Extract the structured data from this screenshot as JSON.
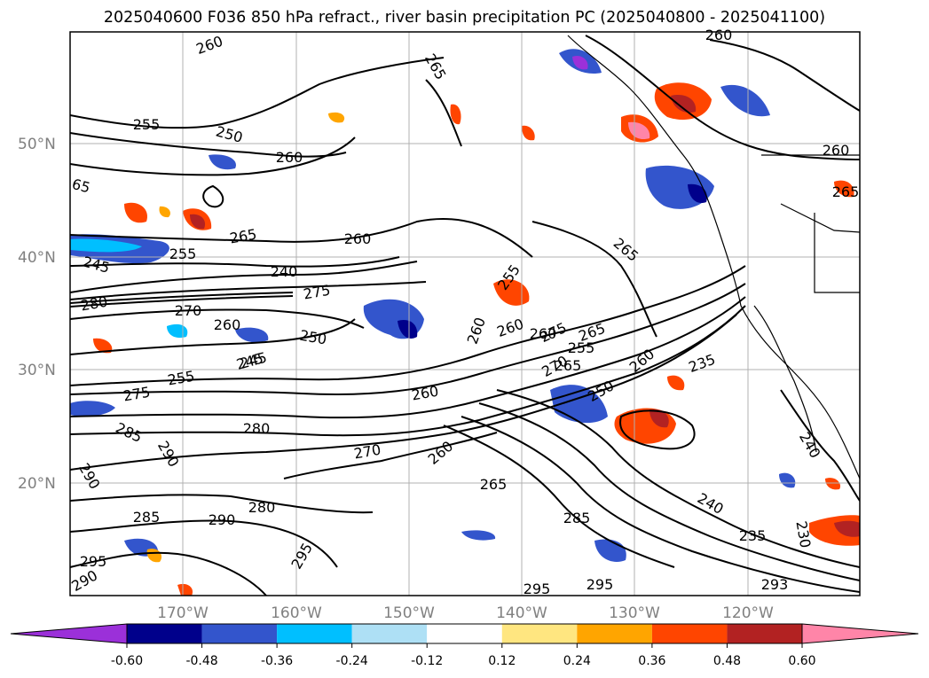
{
  "title": "2025040600 F036 850 hPa refract., river basin precipitation PC (2025040800 - 2025041100)",
  "lat_labels": [
    "50°N",
    "40°N",
    "30°N",
    "20°N"
  ],
  "lon_labels": [
    "170°W",
    "160°W",
    "150°W",
    "140°W",
    "130°W",
    "120°W"
  ],
  "colorbar": {
    "ticks": [
      "-0.60",
      "-0.48",
      "-0.36",
      "-0.24",
      "-0.12",
      "0.12",
      "0.24",
      "0.36",
      "0.48",
      "0.60"
    ],
    "colors": [
      "#9b30d9",
      "#00008b",
      "#3355cc",
      "#00bfff",
      "#aee0f5",
      "#ffffff",
      "#ffe680",
      "#ffa500",
      "#ff4500",
      "#b22222",
      "#ff85a8"
    ]
  },
  "contour_labels": [
    "260",
    "255",
    "265",
    "250",
    "260",
    "65",
    "265",
    "260",
    "245",
    "255",
    "240",
    "275",
    "280",
    "270",
    "260",
    "250",
    "245",
    "255",
    "275",
    "260",
    "280",
    "285",
    "290",
    "290",
    "285",
    "280",
    "290",
    "270",
    "260",
    "265",
    "255",
    "260",
    "275",
    "265",
    "270",
    "260",
    "250",
    "245",
    "235",
    "265",
    "240",
    "235",
    "230",
    "240",
    "285",
    "295",
    "295",
    "260",
    "265",
    "295",
    "290",
    "295",
    "293",
    "260",
    "265",
    "260",
    "255",
    "260"
  ]
}
